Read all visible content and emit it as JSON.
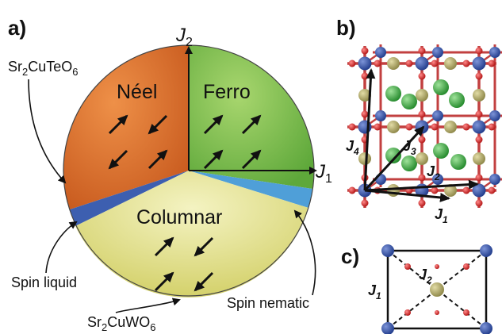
{
  "panels": {
    "a": "a)",
    "b": "b)",
    "c": "c)"
  },
  "phase_diagram": {
    "axis_j1": {
      "symbol": "J",
      "subscript": "1"
    },
    "axis_j2": {
      "symbol": "J",
      "subscript": "2"
    },
    "phases": {
      "neel": "Néel",
      "ferro": "Ferro",
      "columnar": "Columnar",
      "spin_liquid": "Spin liquid",
      "spin_nematic": "Spin nematic"
    },
    "compounds": {
      "tellurate": {
        "parts": [
          "Sr",
          "2",
          "CuTeO",
          "6"
        ]
      },
      "tungstate": {
        "parts": [
          "Sr",
          "2",
          "CuWO",
          "6"
        ]
      }
    },
    "colors": {
      "neel": "#e0742a",
      "ferro": "#7fbf4a",
      "columnar": "#e8e69a",
      "spin_liquid": "#3d5fb0",
      "spin_nematic": "#4f9fd8"
    }
  },
  "crystal": {
    "bonds": [
      {
        "symbol": "J",
        "subscript": "1"
      },
      {
        "symbol": "J",
        "subscript": "2"
      },
      {
        "symbol": "J",
        "subscript": "3"
      },
      {
        "symbol": "J",
        "subscript": "4"
      }
    ],
    "colors": {
      "cu": "#2e4fa8",
      "te": "#b5ad6a",
      "sr": "#3fae3a",
      "o": "#d02020",
      "bond": "#c24040"
    }
  },
  "plaquette": {
    "j1": {
      "symbol": "J",
      "subscript": "1"
    },
    "j2": {
      "symbol": "J",
      "subscript": "2"
    }
  }
}
